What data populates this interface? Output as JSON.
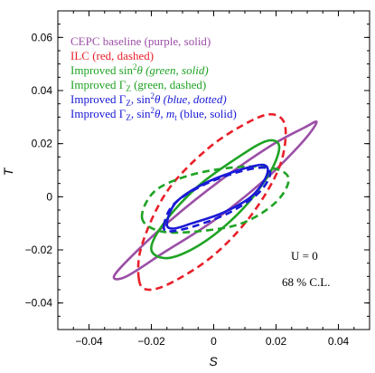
{
  "chart_data": {
    "type": "scatter",
    "subtype": "confidence-ellipses",
    "title": "",
    "xlabel": "S",
    "ylabel": "T",
    "xlim": [
      -0.05,
      0.05
    ],
    "ylim": [
      -0.05,
      0.07
    ],
    "xticks": [
      -0.04,
      -0.02,
      0,
      0.02,
      0.04
    ],
    "xtick_labels": [
      "−0.04",
      "−0.02",
      "0",
      "0.02",
      "0.04"
    ],
    "yticks": [
      -0.04,
      -0.02,
      0,
      0.02,
      0.04,
      0.06
    ],
    "ytick_labels": [
      "−0.04",
      "−0.02",
      "0",
      "0.02",
      "0.04",
      "0.06"
    ],
    "grid": false,
    "legend_position": "top-left",
    "legend": [
      {
        "text": "CEPC baseline (purple, solid)",
        "color": "#9b4fa6",
        "style": "solid"
      },
      {
        "text": "ILC (red, dashed)",
        "color": "#e8202a",
        "style": "dashed"
      },
      {
        "text": "Improved sin²θ (green, solid)",
        "color": "#1fa324",
        "style": "solid"
      },
      {
        "text": "Improved ΓZ (green, dashed)",
        "color": "#1fa324",
        "style": "dashed"
      },
      {
        "text": "Improved ΓZ, sin²θ (blue, dotted)",
        "color": "#1a1ad6",
        "style": "dashed"
      },
      {
        "text": "Improved ΓZ, sin²θ, mt (blue, solid)",
        "color": "#1a1ad6",
        "style": "solid"
      }
    ],
    "series": [
      {
        "name": "CEPC baseline (purple, solid)",
        "color": "#9b4fa6",
        "dash": "solid",
        "points": [
          [
            -0.032,
            -0.03
          ],
          [
            -0.026,
            -0.022
          ],
          [
            -0.014,
            -0.009
          ],
          [
            0.002,
            0.006
          ],
          [
            0.018,
            0.019
          ],
          [
            0.029,
            0.026
          ],
          [
            0.033,
            0.028
          ],
          [
            0.028,
            0.02
          ],
          [
            0.016,
            0.006
          ],
          [
            0.0,
            -0.009
          ],
          [
            -0.016,
            -0.021
          ],
          [
            -0.028,
            -0.03
          ],
          [
            -0.032,
            -0.03
          ]
        ]
      },
      {
        "name": "ILC (red, dashed)",
        "color": "#e8202a",
        "dash": "dashed",
        "points": [
          [
            -0.024,
            -0.031
          ],
          [
            -0.023,
            -0.018
          ],
          [
            -0.015,
            0.002
          ],
          [
            -0.002,
            0.018
          ],
          [
            0.011,
            0.028
          ],
          [
            0.019,
            0.031
          ],
          [
            0.023,
            0.026
          ],
          [
            0.021,
            0.011
          ],
          [
            0.012,
            -0.007
          ],
          [
            0.0,
            -0.022
          ],
          [
            -0.013,
            -0.032
          ],
          [
            -0.021,
            -0.035
          ],
          [
            -0.024,
            -0.031
          ]
        ]
      },
      {
        "name": "Improved sin²θ (green, solid)",
        "color": "#1fa324",
        "style": "solid",
        "dash": "solid",
        "points": [
          [
            -0.02,
            -0.02
          ],
          [
            -0.016,
            -0.01
          ],
          [
            -0.005,
            0.004
          ],
          [
            0.008,
            0.015
          ],
          [
            0.017,
            0.021
          ],
          [
            0.021,
            0.019
          ],
          [
            0.018,
            0.009
          ],
          [
            0.009,
            -0.005
          ],
          [
            -0.003,
            -0.017
          ],
          [
            -0.014,
            -0.023
          ],
          [
            -0.02,
            -0.02
          ]
        ]
      },
      {
        "name": "Improved ΓZ (green, dashed)",
        "color": "#1fa324",
        "dash": "dashed",
        "points": [
          [
            -0.023,
            -0.008
          ],
          [
            -0.019,
            0.002
          ],
          [
            -0.008,
            0.008
          ],
          [
            0.006,
            0.011
          ],
          [
            0.018,
            0.011
          ],
          [
            0.024,
            0.007
          ],
          [
            0.02,
            -0.002
          ],
          [
            0.009,
            -0.01
          ],
          [
            -0.005,
            -0.013
          ],
          [
            -0.017,
            -0.013
          ],
          [
            -0.023,
            -0.008
          ]
        ]
      },
      {
        "name": "Improved ΓZ, sin²θ (blue, dotted)",
        "color": "#1a1ad6",
        "dash": "dashed",
        "points": [
          [
            -0.016,
            -0.011
          ],
          [
            -0.013,
            -0.003
          ],
          [
            -0.004,
            0.004
          ],
          [
            0.007,
            0.009
          ],
          [
            0.016,
            0.011
          ],
          [
            0.018,
            0.008
          ],
          [
            0.014,
            0.001
          ],
          [
            0.005,
            -0.006
          ],
          [
            -0.006,
            -0.011
          ],
          [
            -0.014,
            -0.013
          ],
          [
            -0.016,
            -0.011
          ]
        ]
      },
      {
        "name": "Improved ΓZ, sin²θ, mt (blue, solid)",
        "color": "#1a1ad6",
        "dash": "solid",
        "points": [
          [
            -0.015,
            -0.01
          ],
          [
            -0.012,
            -0.002
          ],
          [
            -0.003,
            0.005
          ],
          [
            0.008,
            0.01
          ],
          [
            0.016,
            0.012
          ],
          [
            0.017,
            0.008
          ],
          [
            0.012,
            0.0
          ],
          [
            0.003,
            -0.006
          ],
          [
            -0.007,
            -0.01
          ],
          [
            -0.013,
            -0.012
          ],
          [
            -0.015,
            -0.01
          ]
        ]
      }
    ],
    "annotations": [
      "U = 0",
      "68 % C.L."
    ]
  }
}
